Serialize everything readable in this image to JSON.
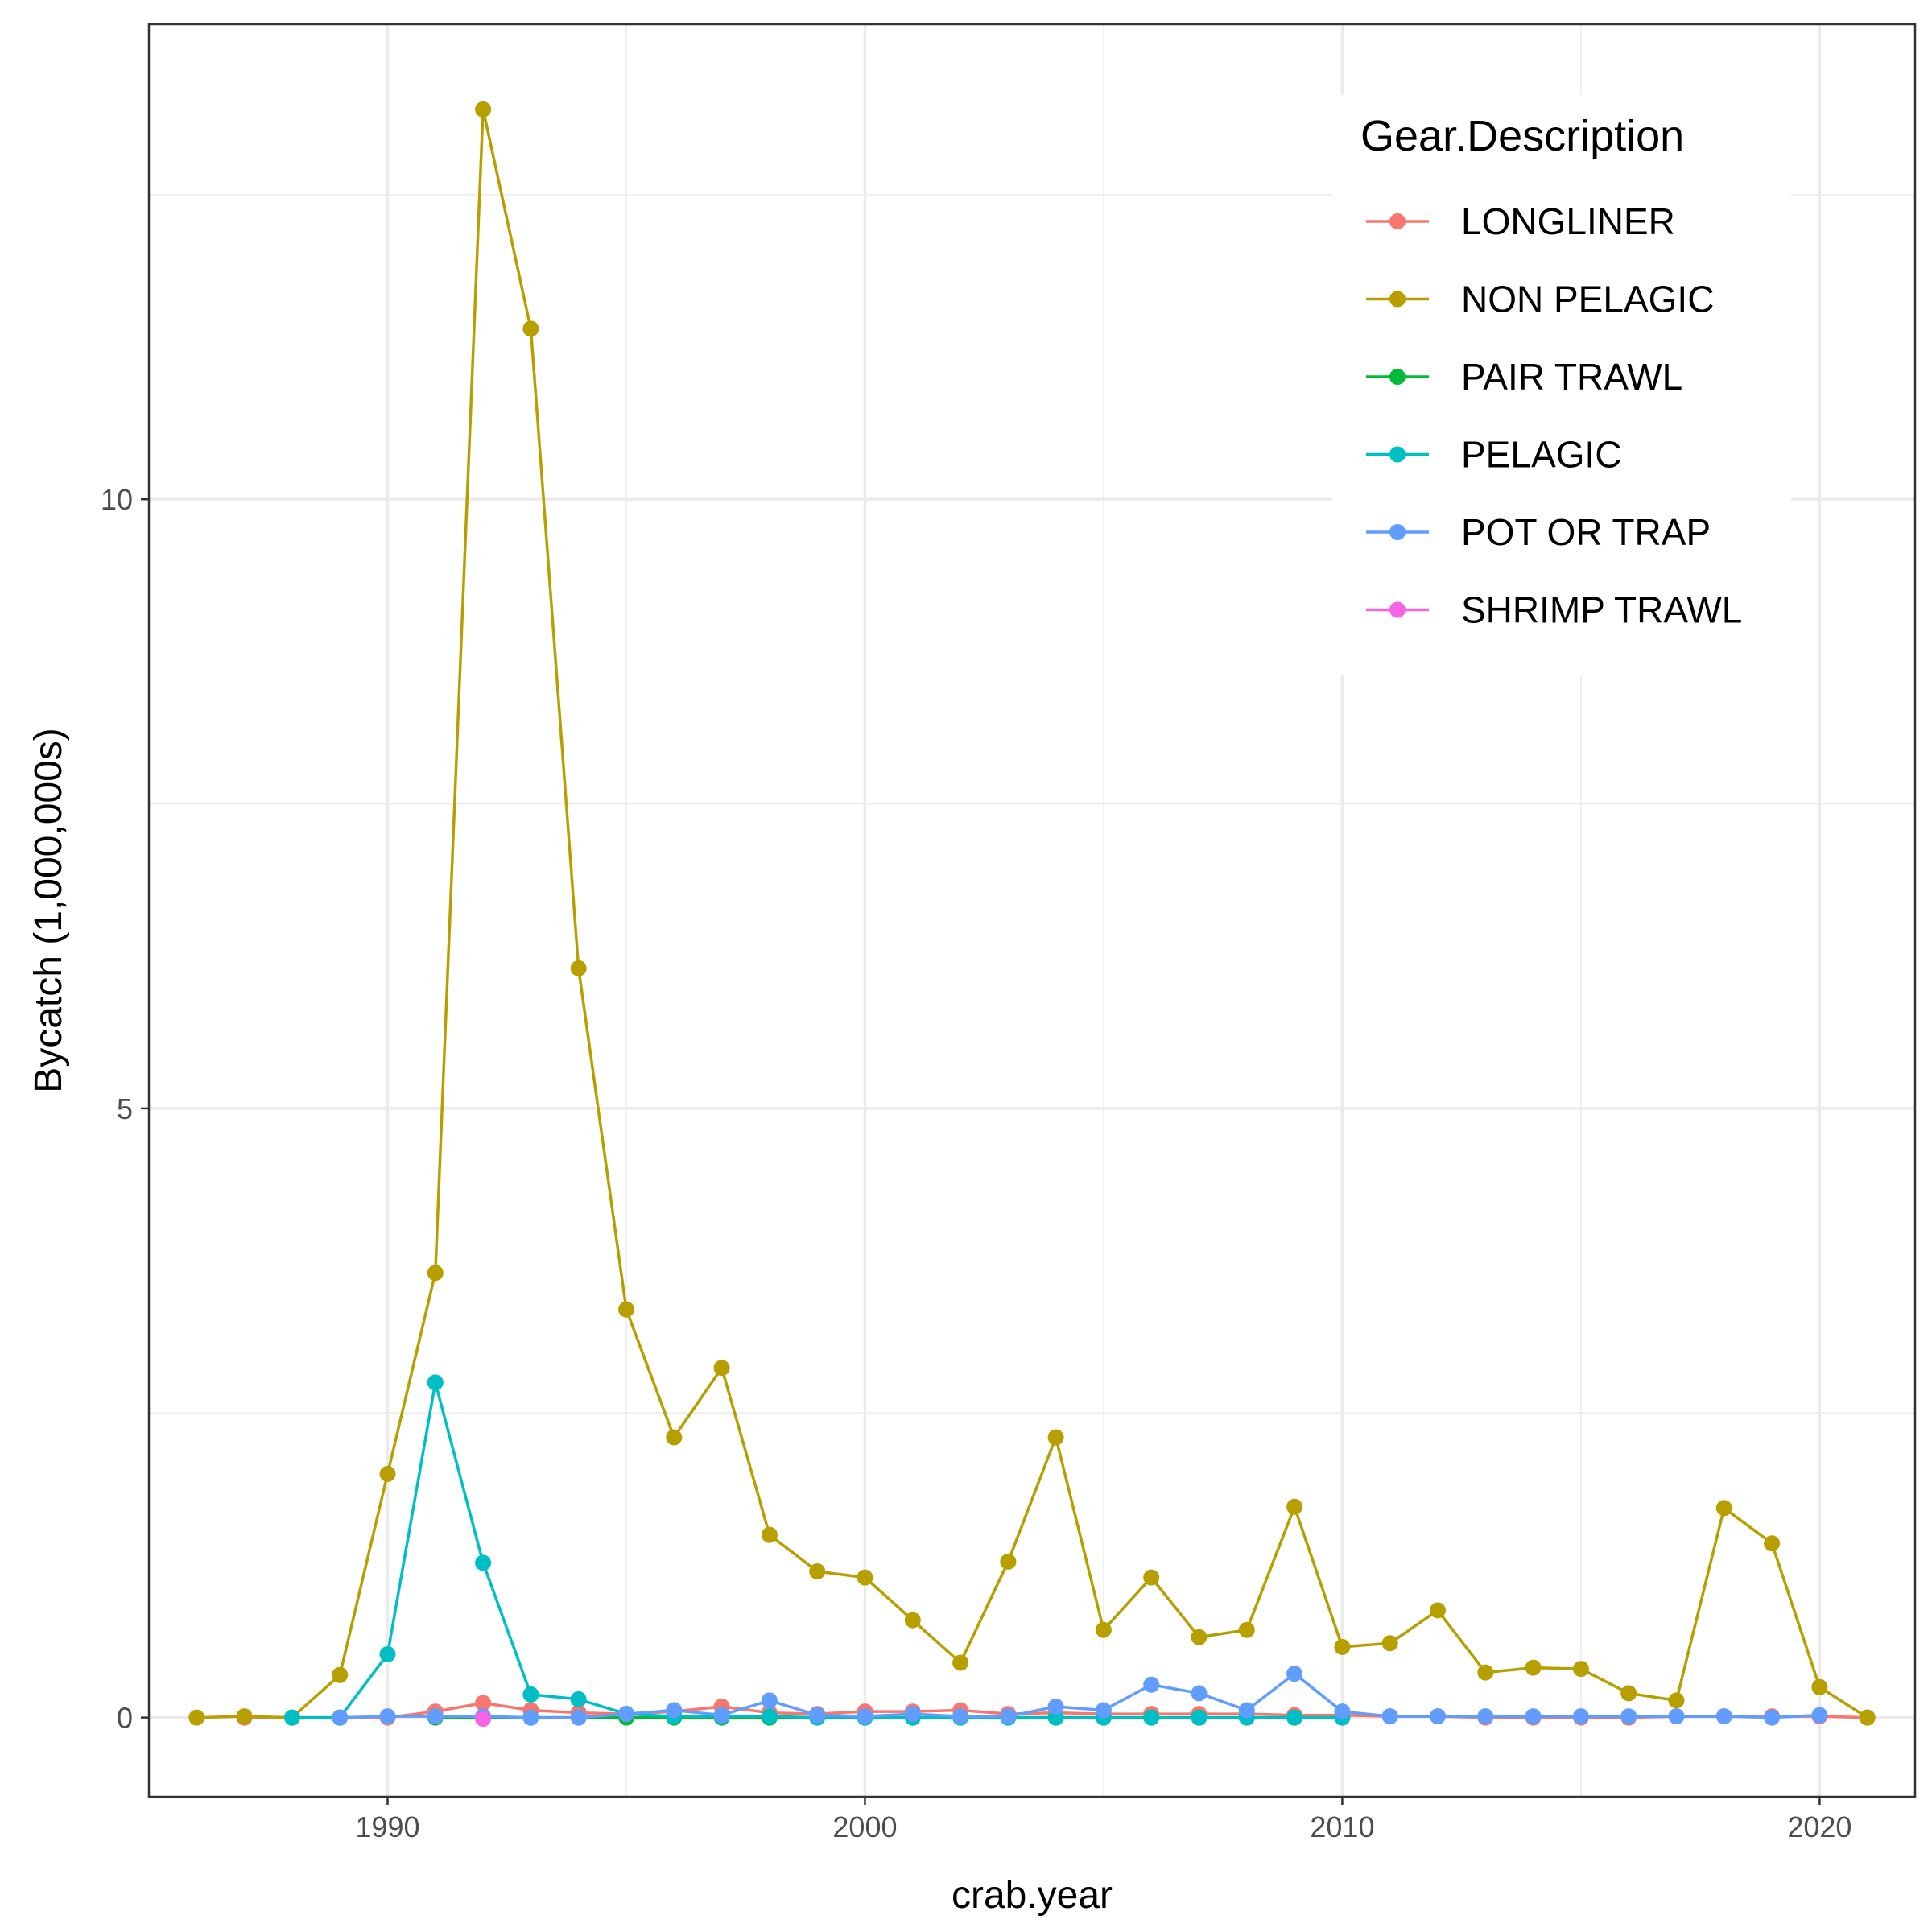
{
  "chart_data": {
    "type": "line",
    "title": "",
    "xlabel": "crab.year",
    "ylabel": "Bycatch (1,000,000s)",
    "xlim": [
      1985,
      2022
    ],
    "ylim": [
      -0.65,
      13.9
    ],
    "x_ticks": [
      1990,
      2000,
      2010,
      2020
    ],
    "y_ticks": [
      0,
      5,
      10
    ],
    "x_minor_ticks": [
      1985,
      1995,
      2005,
      2015
    ],
    "y_minor_ticks": [
      2.5,
      7.5,
      12.5
    ],
    "grid": true,
    "legend_position": "top-right",
    "legend_title": "Gear.Description",
    "series": [
      {
        "name": "LONGLINER",
        "color": "#F8766D",
        "x": [
          1987,
          1988,
          1989,
          1990,
          1991,
          1992,
          1993,
          1994,
          1995,
          1996,
          1997,
          1998,
          1999,
          2000,
          2001,
          2002,
          2003,
          2004,
          2005,
          2006,
          2007,
          2008,
          2009,
          2010,
          2011,
          2012,
          2013,
          2014,
          2015,
          2016,
          2017,
          2018,
          2019,
          2020,
          2021
        ],
        "y": [
          0,
          0,
          0,
          0,
          0.05,
          0.12,
          0.06,
          0.04,
          0.03,
          0.05,
          0.09,
          0.04,
          0.03,
          0.05,
          0.05,
          0.06,
          0.03,
          0.04,
          0.03,
          0.03,
          0.03,
          0.03,
          0.02,
          0.02,
          0.01,
          0.01,
          0,
          0,
          0,
          0,
          0.01,
          0.01,
          0.01,
          0.01,
          0
        ]
      },
      {
        "name": "NON PELAGIC",
        "color": "#B79F00",
        "x": [
          1986,
          1987,
          1988,
          1989,
          1990,
          1991,
          1992,
          1993,
          1994,
          1995,
          1996,
          1997,
          1998,
          1999,
          2000,
          2001,
          2002,
          2003,
          2004,
          2005,
          2006,
          2007,
          2008,
          2009,
          2010,
          2011,
          2012,
          2013,
          2014,
          2015,
          2016,
          2017,
          2018,
          2019,
          2020,
          2021
        ],
        "y": [
          0,
          0.01,
          0,
          0.35,
          2.0,
          3.65,
          13.2,
          11.4,
          6.15,
          3.35,
          2.3,
          2.87,
          1.5,
          1.2,
          1.15,
          0.8,
          0.45,
          1.28,
          2.3,
          0.72,
          1.15,
          0.66,
          0.72,
          1.73,
          0.58,
          0.61,
          0.88,
          0.37,
          0.41,
          0.4,
          0.2,
          0.14,
          1.72,
          1.43,
          0.25,
          0
        ]
      },
      {
        "name": "PAIR TRAWL",
        "color": "#00BA38",
        "x": [
          1991,
          1992,
          1993,
          1994,
          1995,
          1996,
          1997,
          1998,
          1999,
          2000,
          2001,
          2002,
          2003,
          2004,
          2005,
          2006,
          2007,
          2008,
          2009,
          2010
        ],
        "y": [
          0,
          0,
          0,
          0,
          0,
          0,
          0,
          0,
          0,
          0,
          0,
          0,
          0,
          0,
          0,
          0,
          0,
          0,
          0,
          0
        ]
      },
      {
        "name": "PELAGIC",
        "color": "#00BFC4",
        "x": [
          1988,
          1989,
          1990,
          1991,
          1992,
          1993,
          1994,
          1995,
          1996,
          1997,
          1998,
          1999,
          2000,
          2001,
          2002,
          2003,
          2004,
          2005,
          2006,
          2007,
          2008,
          2009,
          2010
        ],
        "y": [
          0,
          0,
          0.52,
          2.75,
          1.27,
          0.19,
          0.15,
          0.03,
          0.01,
          0.01,
          0.01,
          0,
          0,
          0,
          0,
          0,
          0,
          0,
          0,
          0,
          0,
          0,
          0
        ]
      },
      {
        "name": "POT OR TRAP",
        "color": "#619CFF",
        "x": [
          1989,
          1990,
          1991,
          1992,
          1993,
          1994,
          1995,
          1996,
          1997,
          1998,
          1999,
          2000,
          2001,
          2002,
          2003,
          2004,
          2005,
          2006,
          2007,
          2008,
          2009,
          2010,
          2011,
          2012,
          2013,
          2014,
          2015,
          2016,
          2017,
          2018,
          2019,
          2020
        ],
        "y": [
          0,
          0.01,
          0.01,
          0.01,
          0,
          0,
          0.03,
          0.06,
          0.02,
          0.14,
          0.02,
          0.01,
          0.03,
          0.01,
          0.01,
          0.09,
          0.06,
          0.27,
          0.2,
          0.06,
          0.36,
          0.05,
          0.01,
          0.01,
          0.01,
          0.01,
          0.01,
          0.01,
          0.01,
          0.01,
          0,
          0.02
        ]
      },
      {
        "name": "SHRIMP TRAWL",
        "color": "#F564E3",
        "x": [
          1992
        ],
        "y": [
          -0.01
        ]
      }
    ]
  }
}
